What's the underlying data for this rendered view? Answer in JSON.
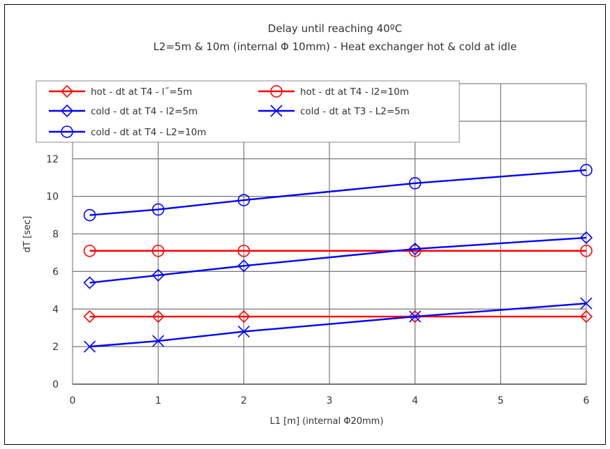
{
  "chart_data": {
    "type": "line",
    "title": "Delay until reaching 40ºC",
    "subtitle": "L2=5m & 10m (internal Φ 10mm) - Heat exchanger hot & cold at idle",
    "xlabel": "L1 [m] (internal Φ20mm)",
    "ylabel": "dT [sec]",
    "xlim": [
      0,
      6
    ],
    "ylim": [
      0,
      16
    ],
    "xticks": [
      0,
      1,
      2,
      3,
      4,
      5,
      6
    ],
    "yticks": [
      0,
      2,
      4,
      6,
      8,
      10,
      12
    ],
    "grid": true,
    "legend_position": "top-left",
    "x": [
      0.2,
      1,
      2,
      4,
      6
    ],
    "series": [
      {
        "name": "hot - dt at T4 - l˝=5m",
        "color": "#ff0000",
        "marker": "diamond",
        "values": [
          3.6,
          3.6,
          3.6,
          3.6,
          3.6
        ]
      },
      {
        "name": "hot - dt at T4 - l2=10m",
        "color": "#ff0000",
        "marker": "circle",
        "values": [
          7.1,
          7.1,
          7.1,
          7.1,
          7.1
        ]
      },
      {
        "name": "cold - dt at T4 - l2=5m",
        "color": "#0000ff",
        "marker": "diamond",
        "values": [
          5.4,
          5.8,
          6.3,
          7.2,
          7.8
        ]
      },
      {
        "name": "cold - dt at T3 - L2=5m",
        "color": "#0000ff",
        "marker": "x",
        "values": [
          2.0,
          2.3,
          2.8,
          3.6,
          4.3
        ]
      },
      {
        "name": "cold - dt at T4 - L2=10m",
        "color": "#0000ff",
        "marker": "circle",
        "values": [
          9.0,
          9.3,
          9.8,
          10.7,
          11.4
        ]
      }
    ]
  }
}
